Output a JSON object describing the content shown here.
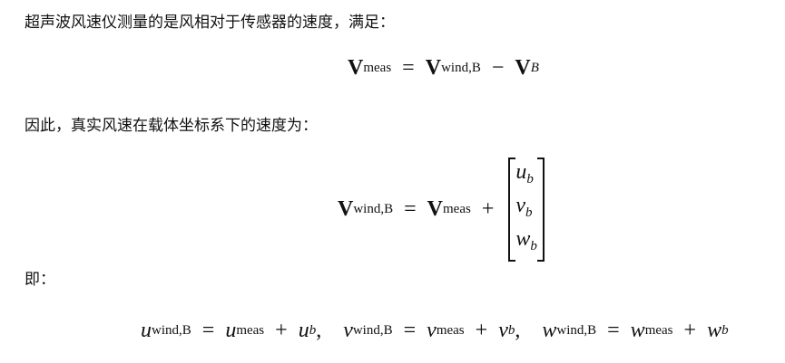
{
  "paragraphs": [
    "超声波风速仪测量的是风相对于传感器的速度，满足：",
    "因此，真实风速在载体坐标系下的速度为：",
    "即："
  ],
  "equations": {
    "eq1": {
      "lhs": "V",
      "lhs_sub": "meas",
      "v1": "V",
      "v1_sub": "wind,B",
      "op": "−",
      "v2": "V",
      "v2_sub": "B"
    },
    "eq2": {
      "lhs": "V",
      "lhs_sub": "wind,B",
      "v1": "V",
      "v1_sub": "meas",
      "op": "+",
      "matrix": [
        "u",
        "v",
        "w"
      ],
      "matrix_sub": "b"
    },
    "eq3": [
      {
        "var": "u",
        "sub": "wind,B",
        "meas": "u",
        "body": "u"
      },
      {
        "var": "v",
        "sub": "wind,B",
        "meas": "v",
        "body": "v"
      },
      {
        "var": "w",
        "sub": "wind,B",
        "meas": "w",
        "body": "w"
      }
    ],
    "meas_sub": "meas",
    "body_sub": "b",
    "eq_sign": "=",
    "plus": "+",
    "comma": ","
  }
}
